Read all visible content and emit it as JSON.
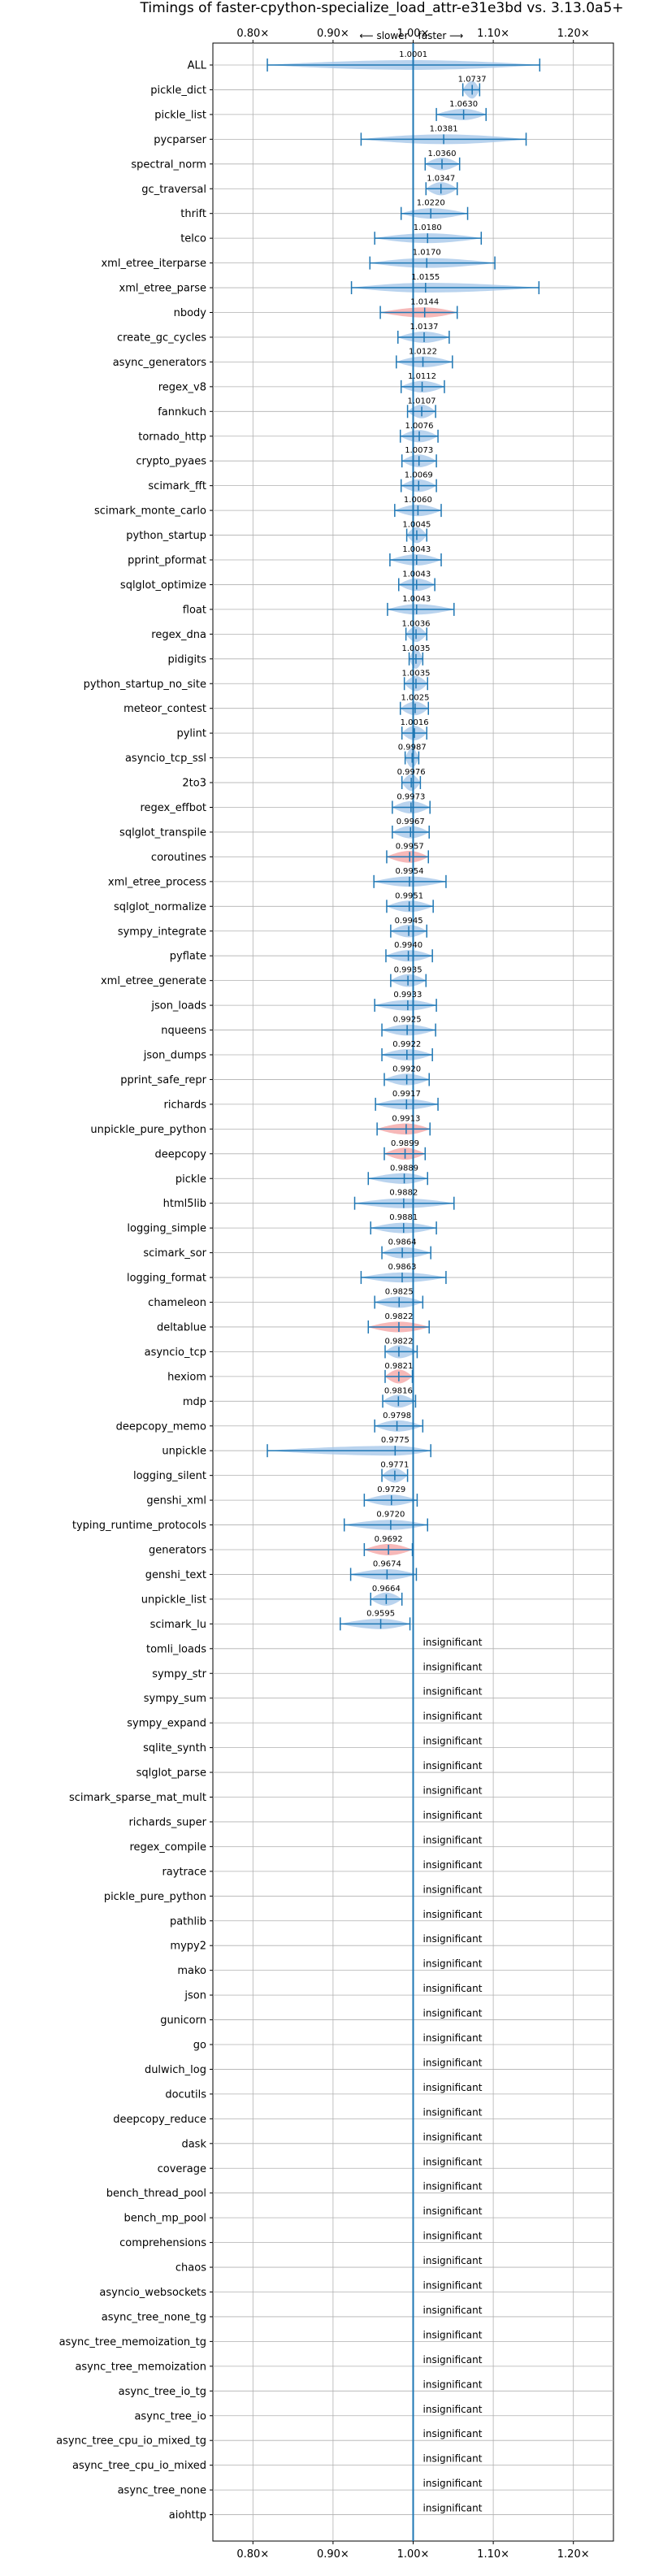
{
  "chart_data": {
    "type": "violin",
    "title": "Timings of faster-cpython-specialize_load_attr-e31e3bd vs. 3.13.0a5+",
    "direction_left": "⟵ slower",
    "direction_right": "faster ⟶",
    "xlim": [
      0.75,
      1.25
    ],
    "xticks": [
      0.8,
      0.9,
      1.0,
      1.1,
      1.2
    ],
    "xtick_labels": [
      "0.80×",
      "0.90×",
      "1.00×",
      "1.10×",
      "1.20×"
    ],
    "grid": true,
    "colors": {
      "faster": "#a8c8ea",
      "slower": "#f4a6a6",
      "line": "#1f77b4",
      "grid": "#b0b0b0"
    },
    "insignificant_label": "insignificant",
    "benchmarks": [
      {
        "name": "ALL",
        "mean": 1.0001,
        "label": "1.0001",
        "lo": 0.818,
        "hi": 1.158
      },
      {
        "name": "pickle_dict",
        "mean": 1.0737,
        "label": "1.0737",
        "lo": 1.062,
        "hi": 1.083
      },
      {
        "name": "pickle_list",
        "mean": 1.063,
        "label": "1.0630",
        "lo": 1.029,
        "hi": 1.091
      },
      {
        "name": "pycparser",
        "mean": 1.0381,
        "label": "1.0381",
        "lo": 0.935,
        "hi": 1.141
      },
      {
        "name": "spectral_norm",
        "mean": 1.036,
        "label": "1.0360",
        "lo": 1.015,
        "hi": 1.058
      },
      {
        "name": "gc_traversal",
        "mean": 1.0347,
        "label": "1.0347",
        "lo": 1.016,
        "hi": 1.055
      },
      {
        "name": "thrift",
        "mean": 1.022,
        "label": "1.0220",
        "lo": 0.985,
        "hi": 1.068
      },
      {
        "name": "telco",
        "mean": 1.018,
        "label": "1.0180",
        "lo": 0.952,
        "hi": 1.085
      },
      {
        "name": "xml_etree_iterparse",
        "mean": 1.017,
        "label": "1.0170",
        "lo": 0.946,
        "hi": 1.102
      },
      {
        "name": "xml_etree_parse",
        "mean": 1.0155,
        "label": "1.0155",
        "lo": 0.923,
        "hi": 1.157
      },
      {
        "name": "nbody",
        "mean": 1.0144,
        "label": "1.0144",
        "lo": 0.959,
        "hi": 1.055
      },
      {
        "name": "create_gc_cycles",
        "mean": 1.0137,
        "label": "1.0137",
        "lo": 0.981,
        "hi": 1.045
      },
      {
        "name": "async_generators",
        "mean": 1.0122,
        "label": "1.0122",
        "lo": 0.979,
        "hi": 1.049
      },
      {
        "name": "regex_v8",
        "mean": 1.0112,
        "label": "1.0112",
        "lo": 0.985,
        "hi": 1.039
      },
      {
        "name": "fannkuch",
        "mean": 1.0107,
        "label": "1.0107",
        "lo": 0.993,
        "hi": 1.028
      },
      {
        "name": "tornado_http",
        "mean": 1.0076,
        "label": "1.0076",
        "lo": 0.984,
        "hi": 1.031
      },
      {
        "name": "crypto_pyaes",
        "mean": 1.0073,
        "label": "1.0073",
        "lo": 0.986,
        "hi": 1.029
      },
      {
        "name": "scimark_fft",
        "mean": 1.0069,
        "label": "1.0069",
        "lo": 0.985,
        "hi": 1.029
      },
      {
        "name": "scimark_monte_carlo",
        "mean": 1.006,
        "label": "1.0060",
        "lo": 0.977,
        "hi": 1.035
      },
      {
        "name": "python_startup",
        "mean": 1.0045,
        "label": "1.0045",
        "lo": 0.992,
        "hi": 1.017
      },
      {
        "name": "pprint_pformat",
        "mean": 1.0043,
        "label": "1.0043",
        "lo": 0.971,
        "hi": 1.035
      },
      {
        "name": "sqlglot_optimize",
        "mean": 1.0043,
        "label": "1.0043",
        "lo": 0.982,
        "hi": 1.027
      },
      {
        "name": "float",
        "mean": 1.0043,
        "label": "1.0043",
        "lo": 0.968,
        "hi": 1.051
      },
      {
        "name": "regex_dna",
        "mean": 1.0036,
        "label": "1.0036",
        "lo": 0.991,
        "hi": 1.017
      },
      {
        "name": "pidigits",
        "mean": 1.0035,
        "label": "1.0035",
        "lo": 0.995,
        "hi": 1.012
      },
      {
        "name": "python_startup_no_site",
        "mean": 1.0035,
        "label": "1.0035",
        "lo": 0.989,
        "hi": 1.018
      },
      {
        "name": "meteor_contest",
        "mean": 1.0025,
        "label": "1.0025",
        "lo": 0.984,
        "hi": 1.019
      },
      {
        "name": "pylint",
        "mean": 1.0016,
        "label": "1.0016",
        "lo": 0.986,
        "hi": 1.017
      },
      {
        "name": "asyncio_tcp_ssl",
        "mean": 0.9987,
        "label": "0.9987",
        "lo": 0.99,
        "hi": 1.007
      },
      {
        "name": "2to3",
        "mean": 0.9976,
        "label": "0.9976",
        "lo": 0.986,
        "hi": 1.009
      },
      {
        "name": "regex_effbot",
        "mean": 0.9973,
        "label": "0.9973",
        "lo": 0.974,
        "hi": 1.021
      },
      {
        "name": "sqlglot_transpile",
        "mean": 0.9967,
        "label": "0.9967",
        "lo": 0.974,
        "hi": 1.02
      },
      {
        "name": "coroutines",
        "mean": 0.9957,
        "label": "0.9957",
        "lo": 0.967,
        "hi": 1.019
      },
      {
        "name": "xml_etree_process",
        "mean": 0.9954,
        "label": "0.9954",
        "lo": 0.951,
        "hi": 1.041
      },
      {
        "name": "sqlglot_normalize",
        "mean": 0.9951,
        "label": "0.9951",
        "lo": 0.967,
        "hi": 1.025
      },
      {
        "name": "sympy_integrate",
        "mean": 0.9945,
        "label": "0.9945",
        "lo": 0.972,
        "hi": 1.017
      },
      {
        "name": "pyflate",
        "mean": 0.994,
        "label": "0.9940",
        "lo": 0.966,
        "hi": 1.024
      },
      {
        "name": "xml_etree_generate",
        "mean": 0.9935,
        "label": "0.9935",
        "lo": 0.972,
        "hi": 1.016
      },
      {
        "name": "json_loads",
        "mean": 0.9933,
        "label": "0.9933",
        "lo": 0.952,
        "hi": 1.029
      },
      {
        "name": "nqueens",
        "mean": 0.9925,
        "label": "0.9925",
        "lo": 0.961,
        "hi": 1.028
      },
      {
        "name": "json_dumps",
        "mean": 0.9922,
        "label": "0.9922",
        "lo": 0.961,
        "hi": 1.024
      },
      {
        "name": "pprint_safe_repr",
        "mean": 0.992,
        "label": "0.9920",
        "lo": 0.964,
        "hi": 1.02
      },
      {
        "name": "richards",
        "mean": 0.9917,
        "label": "0.9917",
        "lo": 0.953,
        "hi": 1.031
      },
      {
        "name": "unpickle_pure_python",
        "mean": 0.9913,
        "label": "0.9913",
        "lo": 0.955,
        "hi": 1.021
      },
      {
        "name": "deepcopy",
        "mean": 0.9899,
        "label": "0.9899",
        "lo": 0.964,
        "hi": 1.015
      },
      {
        "name": "pickle",
        "mean": 0.9889,
        "label": "0.9889",
        "lo": 0.944,
        "hi": 1.018
      },
      {
        "name": "html5lib",
        "mean": 0.9882,
        "label": "0.9882",
        "lo": 0.927,
        "hi": 1.051
      },
      {
        "name": "logging_simple",
        "mean": 0.9881,
        "label": "0.9881",
        "lo": 0.947,
        "hi": 1.029
      },
      {
        "name": "scimark_sor",
        "mean": 0.9864,
        "label": "0.9864",
        "lo": 0.961,
        "hi": 1.022
      },
      {
        "name": "logging_format",
        "mean": 0.9863,
        "label": "0.9863",
        "lo": 0.935,
        "hi": 1.041
      },
      {
        "name": "chameleon",
        "mean": 0.9825,
        "label": "0.9825",
        "lo": 0.952,
        "hi": 1.012
      },
      {
        "name": "deltablue",
        "mean": 0.9822,
        "label": "0.9822",
        "lo": 0.944,
        "hi": 1.02
      },
      {
        "name": "asyncio_tcp",
        "mean": 0.9822,
        "label": "0.9822",
        "lo": 0.965,
        "hi": 1.005
      },
      {
        "name": "hexiom",
        "mean": 0.9821,
        "label": "0.9821",
        "lo": 0.965,
        "hi": 0.999
      },
      {
        "name": "mdp",
        "mean": 0.9816,
        "label": "0.9816",
        "lo": 0.962,
        "hi": 1.003
      },
      {
        "name": "deepcopy_memo",
        "mean": 0.9798,
        "label": "0.9798",
        "lo": 0.952,
        "hi": 1.012
      },
      {
        "name": "unpickle",
        "mean": 0.9775,
        "label": "0.9775",
        "lo": 0.818,
        "hi": 1.022
      },
      {
        "name": "logging_silent",
        "mean": 0.9771,
        "label": "0.9771",
        "lo": 0.961,
        "hi": 0.993
      },
      {
        "name": "genshi_xml",
        "mean": 0.9729,
        "label": "0.9729",
        "lo": 0.939,
        "hi": 1.005
      },
      {
        "name": "typing_runtime_protocols",
        "mean": 0.972,
        "label": "0.9720",
        "lo": 0.914,
        "hi": 1.018
      },
      {
        "name": "generators",
        "mean": 0.9692,
        "label": "0.9692",
        "lo": 0.939,
        "hi": 0.999
      },
      {
        "name": "genshi_text",
        "mean": 0.9674,
        "label": "0.9674",
        "lo": 0.922,
        "hi": 1.004
      },
      {
        "name": "unpickle_list",
        "mean": 0.9664,
        "label": "0.9664",
        "lo": 0.947,
        "hi": 0.986
      },
      {
        "name": "scimark_lu",
        "mean": 0.9595,
        "label": "0.9595",
        "lo": 0.909,
        "hi": 0.996
      },
      {
        "name": "tomli_loads",
        "insignificant": true
      },
      {
        "name": "sympy_str",
        "insignificant": true
      },
      {
        "name": "sympy_sum",
        "insignificant": true
      },
      {
        "name": "sympy_expand",
        "insignificant": true
      },
      {
        "name": "sqlite_synth",
        "insignificant": true
      },
      {
        "name": "sqlglot_parse",
        "insignificant": true
      },
      {
        "name": "scimark_sparse_mat_mult",
        "insignificant": true
      },
      {
        "name": "richards_super",
        "insignificant": true
      },
      {
        "name": "regex_compile",
        "insignificant": true
      },
      {
        "name": "raytrace",
        "insignificant": true
      },
      {
        "name": "pickle_pure_python",
        "insignificant": true
      },
      {
        "name": "pathlib",
        "insignificant": true
      },
      {
        "name": "mypy2",
        "insignificant": true
      },
      {
        "name": "mako",
        "insignificant": true
      },
      {
        "name": "json",
        "insignificant": true
      },
      {
        "name": "gunicorn",
        "insignificant": true
      },
      {
        "name": "go",
        "insignificant": true
      },
      {
        "name": "dulwich_log",
        "insignificant": true
      },
      {
        "name": "docutils",
        "insignificant": true
      },
      {
        "name": "deepcopy_reduce",
        "insignificant": true
      },
      {
        "name": "dask",
        "insignificant": true
      },
      {
        "name": "coverage",
        "insignificant": true
      },
      {
        "name": "bench_thread_pool",
        "insignificant": true
      },
      {
        "name": "bench_mp_pool",
        "insignificant": true
      },
      {
        "name": "comprehensions",
        "insignificant": true
      },
      {
        "name": "chaos",
        "insignificant": true
      },
      {
        "name": "asyncio_websockets",
        "insignificant": true
      },
      {
        "name": "async_tree_none_tg",
        "insignificant": true
      },
      {
        "name": "async_tree_memoization_tg",
        "insignificant": true
      },
      {
        "name": "async_tree_memoization",
        "insignificant": true
      },
      {
        "name": "async_tree_io_tg",
        "insignificant": true
      },
      {
        "name": "async_tree_io",
        "insignificant": true
      },
      {
        "name": "async_tree_cpu_io_mixed_tg",
        "insignificant": true
      },
      {
        "name": "async_tree_cpu_io_mixed",
        "insignificant": true
      },
      {
        "name": "async_tree_none",
        "insignificant": true
      },
      {
        "name": "aiohttp",
        "insignificant": true
      }
    ]
  }
}
